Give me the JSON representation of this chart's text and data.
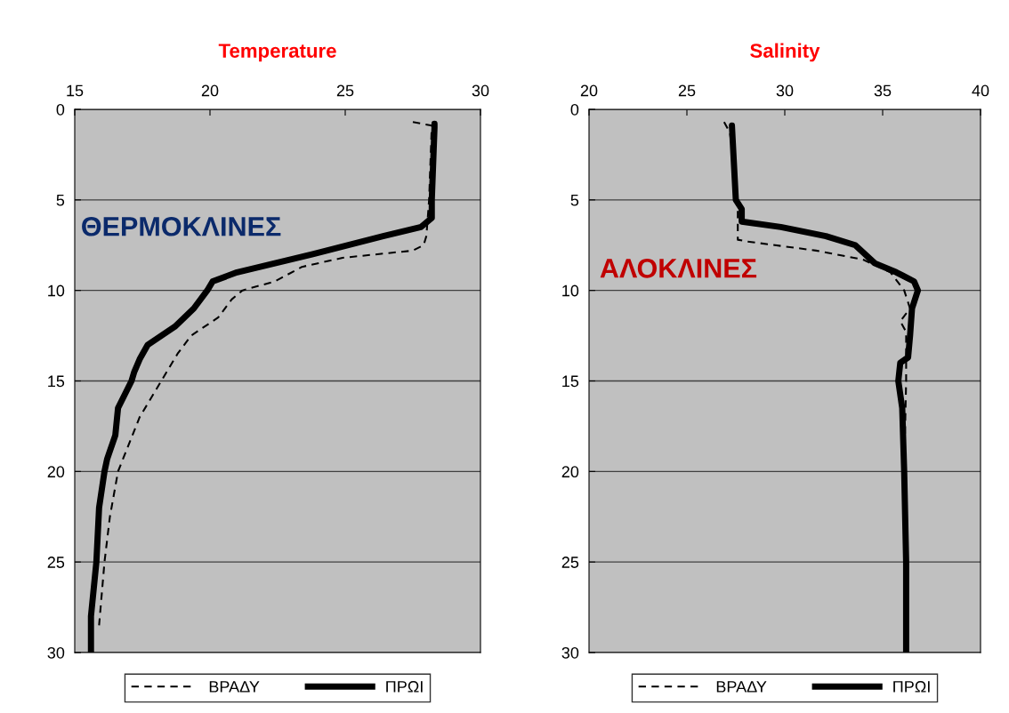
{
  "chart_data": [
    {
      "type": "line",
      "title": "Temperature",
      "xlim": [
        15,
        30
      ],
      "xticks": [
        15,
        20,
        25,
        30
      ],
      "ylim": [
        30,
        0
      ],
      "yticks": [
        0,
        5,
        10,
        15,
        20,
        25,
        30
      ],
      "grid": "y",
      "legend": "bottom",
      "annotations": [
        "ΘΕΡΜΟΚΛΙΝΕΣ"
      ],
      "series": [
        {
          "name": "ΒΡΑΔΥ",
          "color": "#000000",
          "line_style": "dashed",
          "x": [
            27.5,
            28.2,
            28.1,
            28.0,
            27.9,
            27.5,
            24.9,
            23.4,
            22.4,
            21.2,
            20.8,
            20.3,
            19.3,
            18.8,
            18.2,
            17.4,
            16.6,
            16.3,
            16.1,
            15.9
          ],
          "values": [
            0.7,
            0.9,
            5,
            7,
            7.5,
            7.8,
            8.2,
            8.7,
            9.5,
            10,
            10.5,
            11.5,
            12.5,
            13.5,
            15,
            17,
            20,
            22.5,
            25,
            28.5
          ]
        },
        {
          "name": "ΠΡΩΙ",
          "color": "#000000",
          "line_style": "solid",
          "x": [
            28.3,
            28.3,
            28.2,
            28.2,
            27.8,
            26.4,
            23.8,
            21.0,
            20.1,
            19.9,
            19.4,
            18.7,
            18.2,
            17.7,
            17.4,
            17.2,
            17.1,
            16.6,
            16.5,
            16.2,
            16.1,
            15.9,
            15.8,
            15.6,
            15.6
          ],
          "values": [
            0.8,
            1,
            5,
            6,
            6.5,
            7,
            8,
            9,
            9.5,
            10,
            11,
            12,
            12.5,
            13,
            13.8,
            14.5,
            15,
            16.5,
            18,
            19.3,
            20,
            22,
            25,
            28,
            30
          ]
        }
      ]
    },
    {
      "type": "line",
      "title": "Salinity",
      "xlim": [
        20,
        40
      ],
      "xticks": [
        20,
        25,
        30,
        35,
        40
      ],
      "ylim": [
        30,
        0
      ],
      "yticks": [
        0,
        5,
        10,
        15,
        20,
        25,
        30
      ],
      "grid": "y",
      "legend": "bottom",
      "annotations": [
        "ΑΛΟΚΛΙΝΕΣ"
      ],
      "series": [
        {
          "name": "ΒΡΑΔΥ",
          "color": "#000000",
          "line_style": "dashed",
          "x": [
            26.9,
            27.2,
            27.6,
            27.6,
            28.1,
            31.6,
            34.0,
            35.4,
            36.1,
            36.4,
            35.9,
            36.2,
            36.2,
            36.1,
            36.2,
            36.2
          ],
          "values": [
            0.7,
            1.3,
            5,
            7.2,
            7.3,
            7.8,
            8.3,
            9,
            10,
            11,
            11.7,
            12.3,
            15,
            20,
            25,
            30
          ]
        },
        {
          "name": "ΠΡΩΙ",
          "color": "#000000",
          "line_style": "solid",
          "x": [
            27.3,
            27.5,
            27.8,
            27.8,
            29.8,
            32.1,
            33.6,
            34.6,
            35.7,
            36.6,
            36.8,
            36.5,
            36.4,
            36.3,
            35.9,
            35.8,
            36.0,
            36.1,
            36.2,
            36.2
          ],
          "values": [
            0.9,
            5,
            5.5,
            6.2,
            6.5,
            7,
            7.5,
            8.5,
            9,
            9.5,
            10,
            11,
            12.5,
            13.7,
            14,
            15,
            16.5,
            20,
            25,
            30
          ]
        }
      ]
    }
  ]
}
